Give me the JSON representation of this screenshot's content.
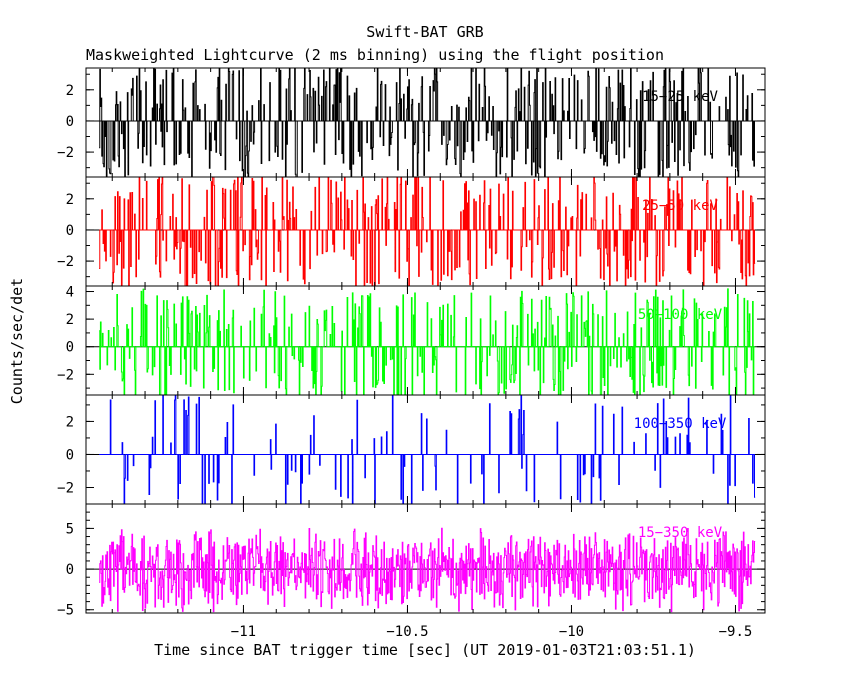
{
  "chart_data": {
    "type": "line",
    "title": "Swift-BAT GRB",
    "subtitle": "Maskweighted Lightcurve (2 ms binning) using the flight position",
    "xlabel": "Time since BAT trigger time [sec] (UT 2019-01-03T21:03:51.1)",
    "ylabel": "Counts/sec/det",
    "xlim": [
      -11.48,
      -9.41
    ],
    "x_ticks": [
      -11,
      -10.5,
      -10,
      -9.5
    ],
    "x_tick_labels": [
      "−11",
      "−10.5",
      "−10",
      "−9.5"
    ],
    "x_range_data": [
      -11.44,
      -9.44
    ],
    "bin_width": 0.002,
    "panels": [
      {
        "name": "15−25 keV",
        "color": "#000000",
        "ylim": [
          -3.6,
          3.4
        ],
        "yticks": [
          -2,
          0,
          2
        ],
        "ytick_labels": [
          "−2",
          "0",
          "2"
        ],
        "seed": 11,
        "amp": 3.2,
        "activity": 0.42
      },
      {
        "name": "25−50 keV",
        "color": "#ff0000",
        "ylim": [
          -3.6,
          3.4
        ],
        "yticks": [
          -2,
          0,
          2
        ],
        "ytick_labels": [
          "−2",
          "0",
          "2"
        ],
        "seed": 23,
        "amp": 3.3,
        "activity": 0.38
      },
      {
        "name": "50−100 keV",
        "color": "#00ff00",
        "ylim": [
          -3.5,
          4.4
        ],
        "yticks": [
          -2,
          0,
          2,
          4
        ],
        "ytick_labels": [
          "−2",
          "0",
          "2",
          "4"
        ],
        "seed": 37,
        "amp": 3.6,
        "activity": 0.36
      },
      {
        "name": "100−350 keV",
        "color": "#0000ff",
        "ylim": [
          -3.0,
          3.6
        ],
        "yticks": [
          -2,
          0,
          2
        ],
        "ytick_labels": [
          "−2",
          "0",
          "2"
        ],
        "seed": 51,
        "amp": 3.1,
        "activity": 0.14
      },
      {
        "name": "15−350 keV",
        "color": "#ff00ff",
        "ylim": [
          -5.4,
          8.0
        ],
        "yticks": [
          -5,
          0,
          5
        ],
        "ytick_labels": [
          "−5",
          "0",
          "5"
        ],
        "seed": 67,
        "amp": 5.5,
        "activity": 0.9
      }
    ]
  }
}
